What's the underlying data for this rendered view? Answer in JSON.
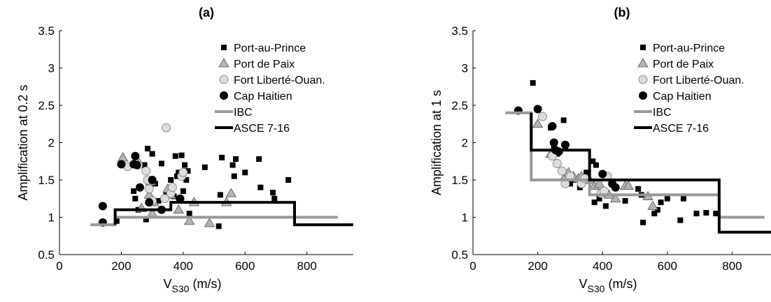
{
  "chart_data": [
    {
      "type": "scatter",
      "title": "(a)",
      "xlabel_main": "V",
      "xlabel_sub": "S30",
      "xlabel_unit": "(m/s)",
      "ylabel": "Amplification at 0.2 s",
      "xlim": [
        0,
        950
      ],
      "ylim": [
        0.5,
        3.5
      ],
      "xticks": [
        "0",
        "200",
        "400",
        "600",
        "800"
      ],
      "yticks": [
        "0.5",
        "1",
        "1.5",
        "2",
        "2.5",
        "3",
        "3.5"
      ],
      "legend_position": "top-right",
      "series": [
        {
          "name": "Port-au-Prince",
          "marker": "square",
          "color": "#000000",
          "x": [
            185,
            240,
            245,
            255,
            275,
            280,
            285,
            300,
            310,
            320,
            330,
            345,
            360,
            370,
            375,
            380,
            385,
            395,
            400,
            405,
            410,
            415,
            420,
            470,
            515,
            520,
            525,
            560,
            565,
            570,
            600,
            645,
            650,
            690,
            695,
            740
          ],
          "y": [
            0.95,
            1.35,
            1.25,
            1.1,
            1.7,
            0.97,
            1.92,
            1.85,
            1.45,
            1.22,
            1.72,
            1.3,
            1.5,
            1.28,
            1.82,
            1.55,
            1.6,
            1.83,
            1.35,
            1.7,
            1.5,
            1.62,
            1.05,
            1.67,
            0.88,
            1.3,
            1.8,
            1.7,
            1.55,
            1.78,
            1.6,
            1.78,
            1.4,
            1.33,
            1.25,
            1.5
          ]
        },
        {
          "name": "Port de Paix",
          "marker": "triangle",
          "color": "#b4b4b4",
          "x": [
            205,
            250,
            265,
            290,
            295,
            300,
            305,
            350,
            360,
            385,
            420,
            435,
            485,
            540,
            555
          ],
          "y": [
            1.8,
            1.78,
            1.12,
            1.3,
            1.48,
            1.05,
            1.2,
            1.38,
            1.3,
            1.1,
            0.95,
            1.2,
            0.92,
            1.2,
            1.32
          ]
        },
        {
          "name": "Fort Liberté-Ouan.",
          "marker": "circle",
          "color": "#dcdcdc",
          "x": [
            220,
            255,
            280,
            285,
            290,
            300,
            340,
            345,
            360,
            365,
            395,
            400
          ],
          "y": [
            1.68,
            1.7,
            1.62,
            1.5,
            1.38,
            1.22,
            1.25,
            2.2,
            1.32,
            1.4,
            1.55,
            1.6
          ]
        },
        {
          "name": "Cap Haitien",
          "marker": "filled-circle",
          "color": "#000000",
          "x": [
            140,
            140,
            200,
            240,
            245,
            250,
            260,
            290,
            300,
            330,
            390
          ],
          "y": [
            1.15,
            0.93,
            1.71,
            1.71,
            1.82,
            1.7,
            1.4,
            1.2,
            1.5,
            1.1,
            1.25
          ]
        }
      ],
      "steps": [
        {
          "name": "IBC",
          "color": "#999999",
          "x": [
            100,
            180,
            180,
            900
          ],
          "y": [
            0.9,
            0.9,
            1.0,
            1.0
          ]
        },
        {
          "name": "ASCE 7-16",
          "color": "#000000",
          "x": [
            180,
            180,
            360,
            360,
            760,
            760,
            950
          ],
          "y": [
            0.9,
            1.1,
            1.1,
            1.2,
            1.2,
            0.9,
            0.9
          ]
        }
      ]
    },
    {
      "type": "scatter",
      "title": "(b)",
      "xlabel_main": "V",
      "xlabel_sub": "S30",
      "xlabel_unit": "(m/s)",
      "ylabel": "Amplification at 1 s",
      "xlim": [
        0,
        920
      ],
      "ylim": [
        0.5,
        3.5
      ],
      "xticks": [
        "0",
        "200",
        "400",
        "600",
        "800"
      ],
      "yticks": [
        "0.5",
        "1",
        "1.5",
        "2",
        "2.5",
        "3",
        "3.5"
      ],
      "legend_position": "top-right",
      "series": [
        {
          "name": "Port-au-Prince",
          "marker": "square",
          "color": "#000000",
          "x": [
            185,
            240,
            250,
            260,
            280,
            285,
            300,
            310,
            330,
            350,
            370,
            375,
            380,
            390,
            400,
            410,
            430,
            440,
            470,
            510,
            520,
            525,
            560,
            570,
            580,
            600,
            640,
            650,
            690,
            720,
            750
          ],
          "y": [
            2.8,
            2.2,
            1.95,
            1.85,
            2.3,
            1.95,
            1.45,
            1.5,
            1.4,
            1.6,
            1.75,
            1.2,
            1.7,
            1.25,
            1.35,
            1.15,
            1.45,
            1.4,
            1.22,
            1.38,
            1.3,
            0.93,
            1.05,
            1.1,
            1.2,
            1.25,
            0.96,
            1.25,
            1.05,
            1.06,
            1.05
          ]
        },
        {
          "name": "Port de Paix",
          "marker": "triangle",
          "color": "#b4b4b4",
          "x": [
            200,
            240,
            285,
            295,
            310,
            325,
            335,
            350,
            360,
            375,
            390,
            405,
            420,
            440,
            470,
            480,
            540,
            555
          ],
          "y": [
            2.25,
            1.85,
            1.55,
            1.6,
            1.55,
            1.52,
            1.55,
            1.5,
            1.5,
            1.42,
            1.45,
            1.32,
            1.3,
            1.25,
            1.42,
            1.42,
            1.28,
            1.15
          ]
        },
        {
          "name": "Fort Liberté-Ouan.",
          "marker": "circle",
          "color": "#dcdcdc",
          "x": [
            215,
            245,
            260,
            275,
            285,
            300,
            335,
            345,
            395,
            405,
            415
          ],
          "y": [
            2.35,
            1.82,
            1.72,
            1.62,
            1.45,
            1.55,
            1.45,
            1.52,
            1.32,
            1.35,
            1.55
          ]
        },
        {
          "name": "Cap Haitien",
          "marker": "filled-circle",
          "color": "#000000",
          "x": [
            140,
            200,
            245,
            250,
            255,
            265,
            285,
            400,
            430,
            440
          ],
          "y": [
            2.43,
            2.45,
            2.22,
            2.0,
            1.9,
            1.88,
            1.97,
            1.58,
            1.45,
            1.4
          ]
        }
      ],
      "steps": [
        {
          "name": "IBC",
          "color": "#999999",
          "x": [
            100,
            180,
            180,
            360,
            360,
            760,
            760,
            900
          ],
          "y": [
            2.4,
            2.4,
            1.5,
            1.5,
            1.3,
            1.3,
            1.0,
            1.0
          ]
        },
        {
          "name": "ASCE 7-16",
          "color": "#000000",
          "x": [
            180,
            180,
            360,
            360,
            760,
            760,
            920
          ],
          "y": [
            2.4,
            1.9,
            1.9,
            1.5,
            1.5,
            0.8,
            0.8
          ]
        }
      ]
    }
  ]
}
